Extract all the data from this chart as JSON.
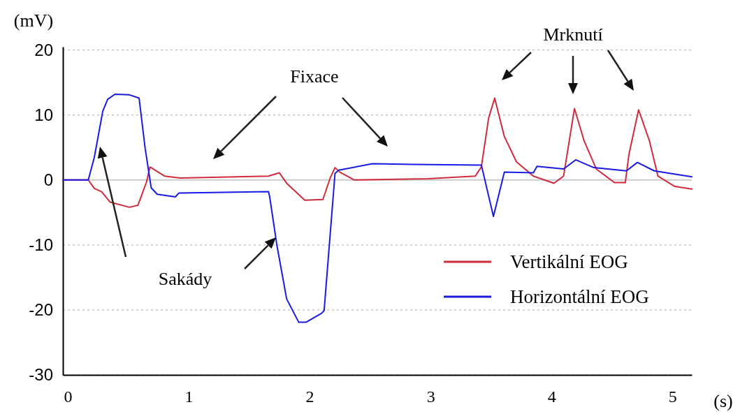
{
  "chart_data": {
    "type": "line",
    "xlabel": "(s)",
    "ylabel": "(mV)",
    "xlim": [
      -0.04,
      5.16
    ],
    "xticks": [
      0,
      1,
      2,
      3,
      4,
      5
    ],
    "ylim": [
      -30,
      20.5
    ],
    "yticks": [
      20,
      10,
      0,
      -10,
      -20,
      -30
    ],
    "grid": "y",
    "legend": "bottom right",
    "line_style": "solid",
    "marker": "none",
    "ref_lines": [
      {
        "axis": "y",
        "value": 0,
        "color": "#cccccc"
      }
    ],
    "annotations": [
      "Fixace",
      "Sakády",
      "Mrknutí"
    ],
    "series": [
      {
        "name": "Vertikální EOG",
        "color": "#d02b3c",
        "x": [
          -0.04,
          0.17,
          0.22,
          0.28,
          0.35,
          0.51,
          0.58,
          0.65,
          0.68,
          0.8,
          0.93,
          1.66,
          1.75,
          1.81,
          1.96,
          2.11,
          2.17,
          2.21,
          2.25,
          2.37,
          2.98,
          3.37,
          3.42,
          3.48,
          3.53,
          3.61,
          3.71,
          3.85,
          4.02,
          4.1,
          4.19,
          4.27,
          4.37,
          4.52,
          4.61,
          4.64,
          4.72,
          4.81,
          4.88,
          5.02,
          5.16
        ],
        "values": [
          0,
          0,
          -1.3,
          -1.8,
          -3.4,
          -4.2,
          -3.9,
          -0.4,
          2,
          0.6,
          0.3,
          0.6,
          1.1,
          -0.5,
          -3.1,
          -3,
          0.3,
          1.9,
          1.2,
          0,
          0.2,
          0.6,
          2,
          9.5,
          12.6,
          6.7,
          2.8,
          0.6,
          -0.5,
          0.6,
          11,
          6,
          1.7,
          -0.4,
          -0.4,
          3.9,
          10.8,
          6,
          0.6,
          -1,
          -1.4
        ]
      },
      {
        "name": "Horizontální EOG",
        "color": "#1a1ae6",
        "x": [
          -0.04,
          0.17,
          0.22,
          0.29,
          0.33,
          0.39,
          0.51,
          0.59,
          0.64,
          0.69,
          0.74,
          0.89,
          0.92,
          1.66,
          1.67,
          1.73,
          1.81,
          1.91,
          1.97,
          2.1,
          2.12,
          2.21,
          2.24,
          2.52,
          2.86,
          3.42,
          3.52,
          3.61,
          3.85,
          3.88,
          4.1,
          4.2,
          4.35,
          4.62,
          4.71,
          4.85,
          5.16
        ],
        "values": [
          0,
          0,
          3.5,
          10.6,
          12.4,
          13.2,
          13.1,
          12.6,
          4.9,
          -1.2,
          -2.2,
          -2.6,
          -2,
          -1.8,
          -2.6,
          -10.1,
          -18.3,
          -21.9,
          -21.9,
          -20.5,
          -20.1,
          1,
          1.5,
          2.5,
          2.4,
          2.3,
          -5.6,
          1.2,
          1.1,
          2.1,
          1.7,
          3.1,
          1.9,
          1.4,
          2.7,
          1.4,
          0.5
        ]
      }
    ]
  }
}
